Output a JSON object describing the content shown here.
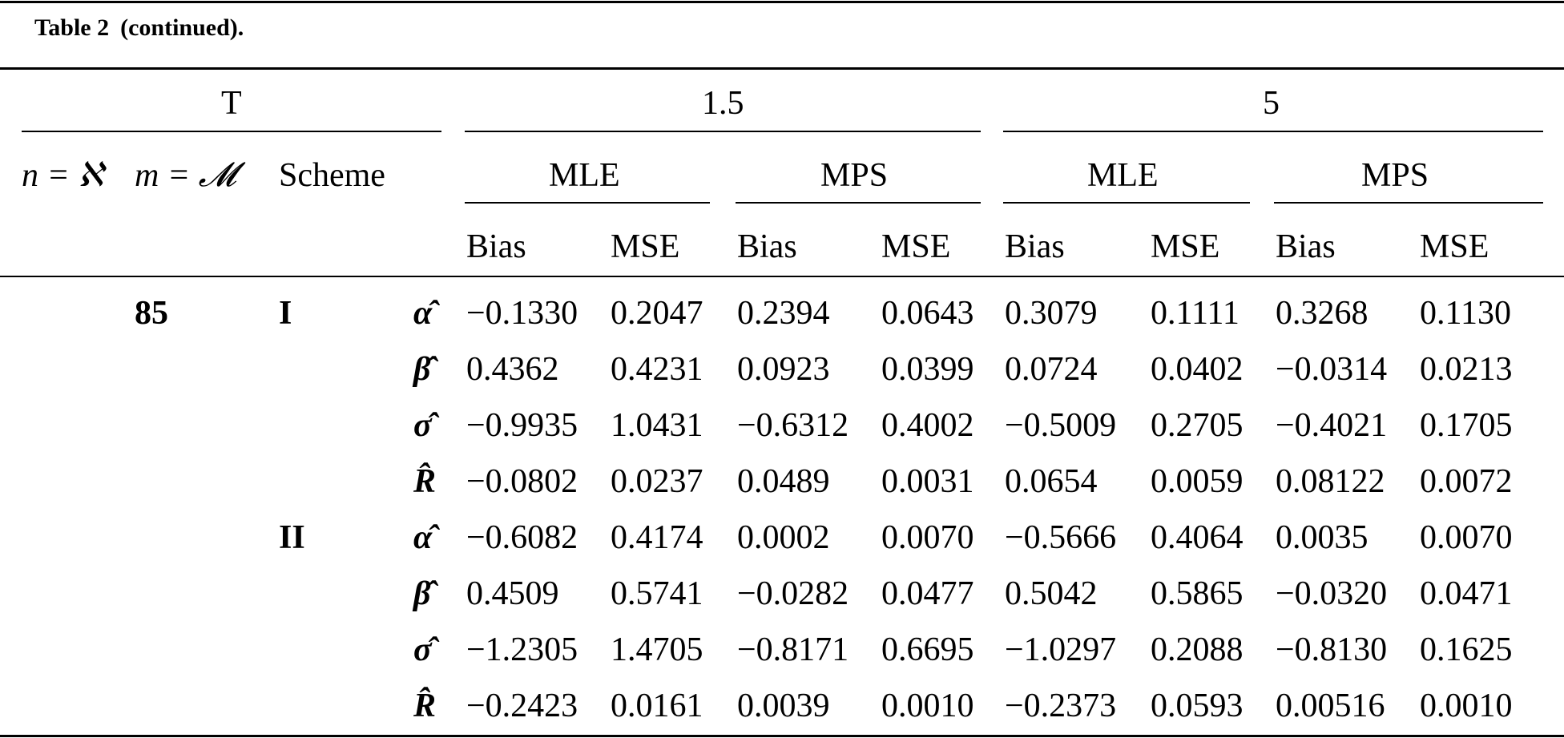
{
  "caption": {
    "table_label": "Table 2",
    "continued": "(continued)."
  },
  "header": {
    "t_label": "T",
    "t_values": [
      "1.5",
      "5"
    ],
    "n_label": "n = ℵ",
    "m_label": "m = 𝓜",
    "scheme_label": "Scheme",
    "methods": [
      "MLE",
      "MPS",
      "MLE",
      "MPS"
    ],
    "stats": [
      "Bias",
      "MSE",
      "Bias",
      "MSE",
      "Bias",
      "MSE",
      "Bias",
      "MSE"
    ]
  },
  "body": {
    "n_value": "85",
    "groups": [
      {
        "scheme": "I",
        "rows": [
          {
            "param": "α̂",
            "values": [
              "−0.1330",
              "0.2047",
              "0.2394",
              "0.0643",
              "0.3079",
              "0.1111",
              "0.3268",
              "0.1130"
            ]
          },
          {
            "param": "β̂",
            "values": [
              "0.4362",
              "0.4231",
              "0.0923",
              "0.0399",
              "0.0724",
              "0.0402",
              "−0.0314",
              "0.0213"
            ]
          },
          {
            "param": "σ̂",
            "values": [
              "−0.9935",
              "1.0431",
              "−0.6312",
              "0.4002",
              "−0.5009",
              "0.2705",
              "−0.4021",
              "0.1705"
            ]
          },
          {
            "param": "R̂",
            "values": [
              "−0.0802",
              "0.0237",
              "0.0489",
              "0.0031",
              "0.0654",
              "0.0059",
              "0.08122",
              "0.0072"
            ]
          }
        ]
      },
      {
        "scheme": "II",
        "rows": [
          {
            "param": "α̂",
            "values": [
              "−0.6082",
              "0.4174",
              "0.0002",
              "0.0070",
              "−0.5666",
              "0.4064",
              "0.0035",
              "0.0070"
            ]
          },
          {
            "param": "β̂",
            "values": [
              "0.4509",
              "0.5741",
              "−0.0282",
              "0.0477",
              "0.5042",
              "0.5865",
              "−0.0320",
              "0.0471"
            ]
          },
          {
            "param": "σ̂",
            "values": [
              "−1.2305",
              "1.4705",
              "−0.8171",
              "0.6695",
              "−1.0297",
              "0.2088",
              "−0.8130",
              "0.1625"
            ]
          },
          {
            "param": "R̂",
            "values": [
              "−0.2423",
              "0.0161",
              "0.0039",
              "0.0010",
              "−0.2373",
              "0.0593",
              "0.00516",
              "0.0010"
            ]
          }
        ]
      }
    ]
  }
}
